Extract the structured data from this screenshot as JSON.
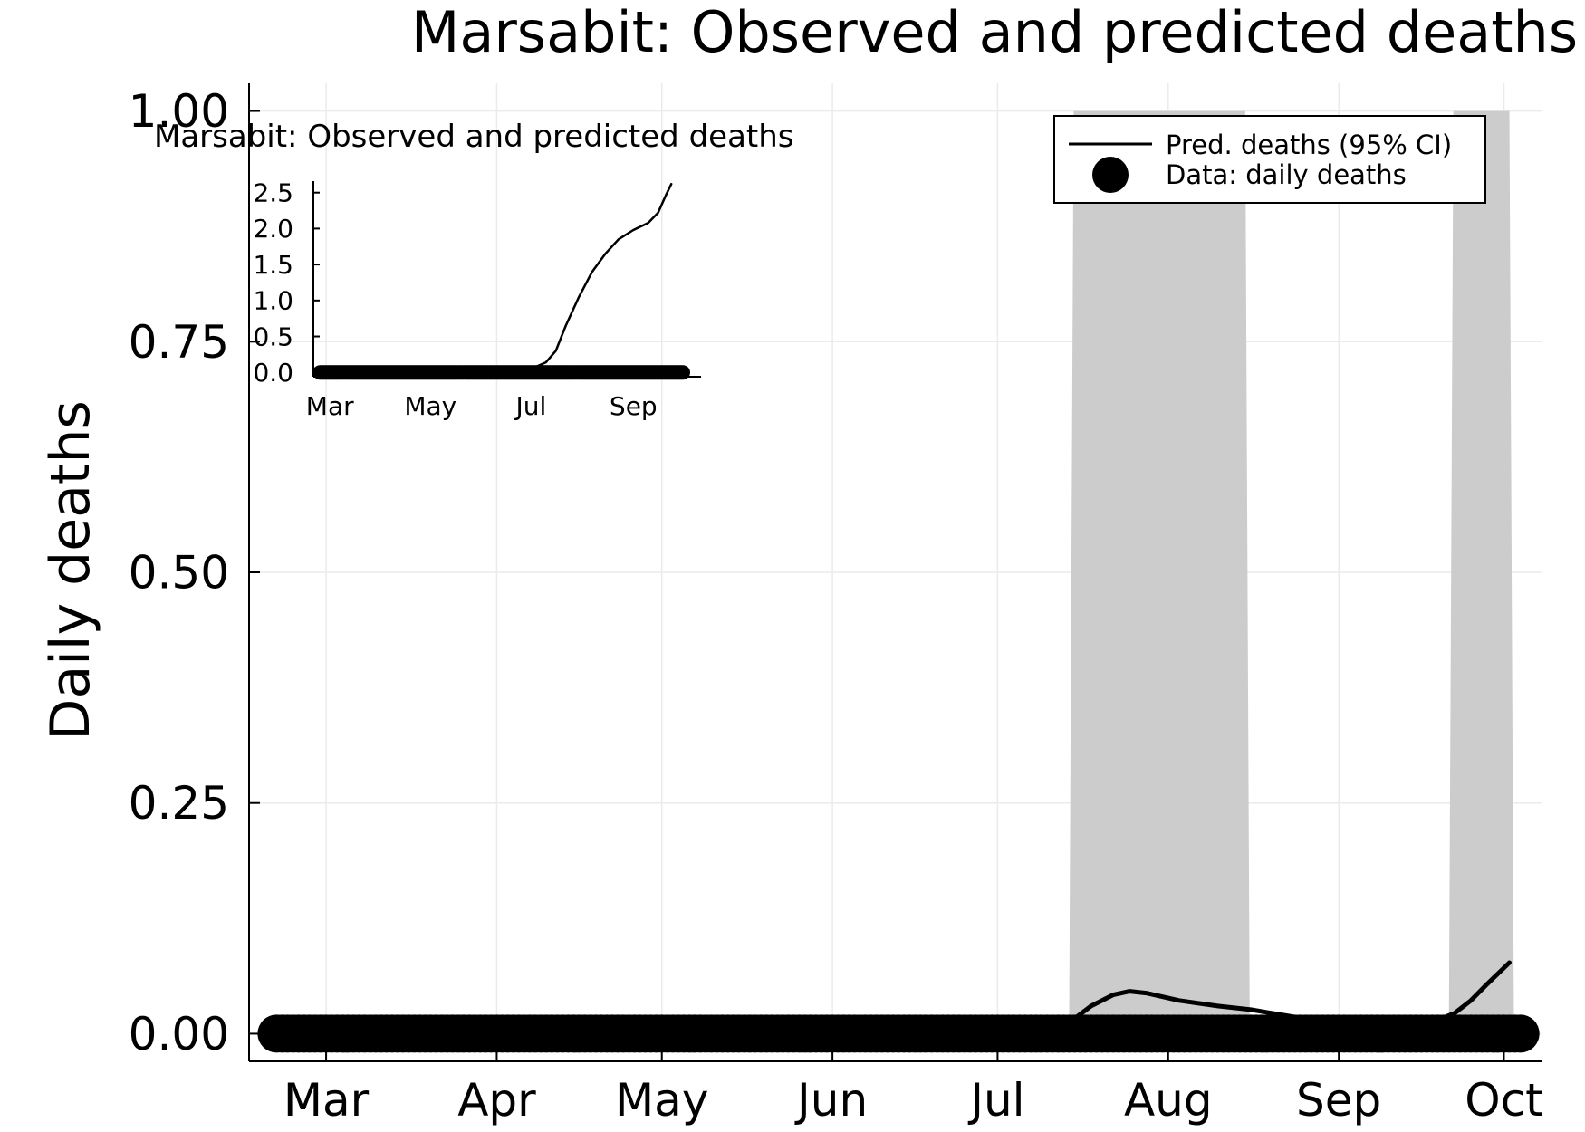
{
  "chart_data": [
    {
      "type": "line",
      "title": "Marsabit: Observed and predicted deaths",
      "xlabel": "",
      "ylabel": "Daily deaths",
      "x_axis_type": "date",
      "xlim": [
        "2020-02-16",
        "2020-10-08"
      ],
      "ylim": [
        -0.03,
        1.03
      ],
      "grid": true,
      "x_ticks": [
        {
          "date": "2020-03-01",
          "label": "Mar"
        },
        {
          "date": "2020-04-01",
          "label": "Apr"
        },
        {
          "date": "2020-05-01",
          "label": "May"
        },
        {
          "date": "2020-06-01",
          "label": "Jun"
        },
        {
          "date": "2020-07-01",
          "label": "Jul"
        },
        {
          "date": "2020-08-01",
          "label": "Aug"
        },
        {
          "date": "2020-09-01",
          "label": "Sep"
        },
        {
          "date": "2020-10-01",
          "label": "Oct"
        }
      ],
      "y_ticks": [
        {
          "value": 0.0,
          "label": "0.00"
        },
        {
          "value": 0.25,
          "label": "0.25"
        },
        {
          "value": 0.5,
          "label": "0.50"
        },
        {
          "value": 0.75,
          "label": "0.75"
        },
        {
          "value": 1.0,
          "label": "1.00"
        }
      ],
      "legend": {
        "position": "top-right",
        "entries": [
          {
            "label": "Pred. deaths (95% CI)",
            "marker": "line"
          },
          {
            "label": "Data: daily deaths",
            "marker": "circle"
          }
        ]
      },
      "series": [
        {
          "name": "Pred. deaths (95% CI)",
          "kind": "line",
          "color": "#000000",
          "points": [
            [
              "2020-02-20",
              0.0
            ],
            [
              "2020-07-01",
              0.0
            ],
            [
              "2020-07-10",
              0.002
            ],
            [
              "2020-07-14",
              0.012
            ],
            [
              "2020-07-18",
              0.03
            ],
            [
              "2020-07-22",
              0.042
            ],
            [
              "2020-07-25",
              0.046
            ],
            [
              "2020-07-28",
              0.044
            ],
            [
              "2020-08-03",
              0.036
            ],
            [
              "2020-08-10",
              0.03
            ],
            [
              "2020-08-16",
              0.026
            ],
            [
              "2020-08-21",
              0.021
            ],
            [
              "2020-08-26",
              0.016
            ],
            [
              "2020-09-01",
              0.014
            ],
            [
              "2020-09-07",
              0.013
            ],
            [
              "2020-09-14",
              0.013
            ],
            [
              "2020-09-19",
              0.015
            ],
            [
              "2020-09-22",
              0.022
            ],
            [
              "2020-09-25",
              0.036
            ],
            [
              "2020-09-28",
              0.054
            ],
            [
              "2020-10-02",
              0.077
            ]
          ]
        },
        {
          "name": "95% CI band",
          "kind": "band",
          "color": "#cccccc",
          "intervals": [
            [
              "2020-07-14",
              "2020-08-15"
            ],
            [
              "2020-09-21",
              "2020-10-02"
            ]
          ],
          "lower": 0.0,
          "upper": 1.0
        },
        {
          "name": "Data: daily deaths",
          "kind": "points",
          "color": "#000000",
          "start": "2020-02-21",
          "end": "2020-10-04",
          "value": 0.0
        }
      ]
    },
    {
      "type": "line",
      "title": "Marsabit: Observed and predicted deaths",
      "x_axis_type": "date",
      "xlim": [
        "2020-02-20",
        "2020-10-12"
      ],
      "ylim": [
        -0.06,
        2.66
      ],
      "grid": false,
      "x_ticks": [
        {
          "date": "2020-03-01",
          "label": "Mar"
        },
        {
          "date": "2020-05-01",
          "label": "May"
        },
        {
          "date": "2020-07-01",
          "label": "Jul"
        },
        {
          "date": "2020-09-01",
          "label": "Sep"
        }
      ],
      "y_ticks": [
        {
          "value": 0.0,
          "label": "0.0"
        },
        {
          "value": 0.5,
          "label": "0.5"
        },
        {
          "value": 1.0,
          "label": "1.0"
        },
        {
          "value": 1.5,
          "label": "1.5"
        },
        {
          "value": 2.0,
          "label": "2.0"
        },
        {
          "value": 2.5,
          "label": "2.5"
        }
      ],
      "series": [
        {
          "name": "Pred. deaths",
          "kind": "line",
          "color": "#000000",
          "points": [
            [
              "2020-02-24",
              0.0
            ],
            [
              "2020-06-23",
              0.0
            ],
            [
              "2020-07-02",
              0.06
            ],
            [
              "2020-07-10",
              0.14
            ],
            [
              "2020-07-16",
              0.3
            ],
            [
              "2020-07-22",
              0.65
            ],
            [
              "2020-07-30",
              1.05
            ],
            [
              "2020-08-07",
              1.4
            ],
            [
              "2020-08-15",
              1.65
            ],
            [
              "2020-08-23",
              1.85
            ],
            [
              "2020-09-01",
              1.98
            ],
            [
              "2020-09-10",
              2.08
            ],
            [
              "2020-09-16",
              2.22
            ],
            [
              "2020-09-21",
              2.48
            ],
            [
              "2020-09-24",
              2.62
            ]
          ]
        },
        {
          "name": "Data: daily deaths",
          "kind": "points",
          "color": "#000000",
          "start": "2020-02-24",
          "end": "2020-10-01",
          "value": 0.0
        }
      ]
    }
  ]
}
